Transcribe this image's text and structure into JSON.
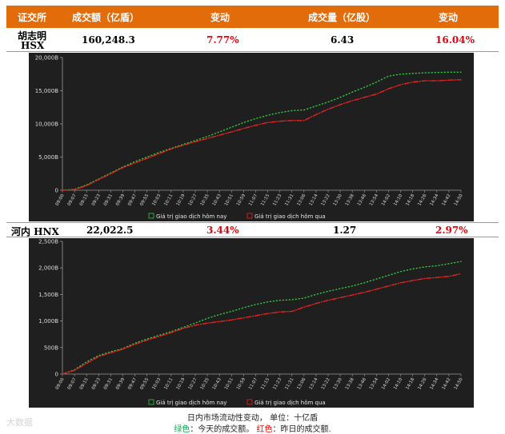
{
  "header": {
    "col1": "证交所",
    "col2": "成交额（亿盾）",
    "col3": "变动",
    "col4": "成交量（亿股）",
    "col5": "变动"
  },
  "hsx": {
    "name": "胡志明",
    "code": "HSX",
    "turnover": "160,248.3",
    "turnover_change": "7.77%",
    "volume": "6.43",
    "volume_change": "16.04%"
  },
  "hnx": {
    "name": "河内 HNX",
    "turnover": "22,022.5",
    "turnover_change": "3.44%",
    "volume": "1.27",
    "volume_change": "2.97%"
  },
  "footer": {
    "line1": "日内市场流动性变动，  单位：十亿盾",
    "green_label": "绿色",
    "green_text": "：今天的成交额。  ",
    "red_label": "红色",
    "red_text": "：昨日的成交额."
  },
  "watermark": "大数据",
  "colors": {
    "today": "#2ecc40",
    "yesterday": "#e8231f",
    "header_bg": "#e36c0a",
    "chart_bg": "#1f1f1f"
  },
  "chart_data": [
    {
      "type": "line",
      "yticks": [
        "0",
        "5,000B",
        "10,000B",
        "15,000B",
        "20,000B"
      ],
      "ylim": [
        0,
        20000
      ],
      "x": [
        "09:00",
        "09:07",
        "09:15",
        "09:23",
        "09:31",
        "09:39",
        "09:47",
        "09:55",
        "10:03",
        "10:11",
        "10:19",
        "10:27",
        "10:35",
        "10:43",
        "10:51",
        "10:59",
        "11:07",
        "11:15",
        "11:23",
        "11:31",
        "13:06",
        "13:14",
        "13:22",
        "13:30",
        "13:38",
        "13:46",
        "13:54",
        "14:02",
        "14:10",
        "14:18",
        "14:26",
        "14:34",
        "14:42",
        "14:50"
      ],
      "series": [
        {
          "name": "Giá trị giao dịch hôm nay",
          "style": "dotted",
          "values": [
            0,
            150,
            800,
            1700,
            2600,
            3500,
            4300,
            5000,
            5700,
            6300,
            6900,
            7500,
            8100,
            8800,
            9500,
            10200,
            10800,
            11300,
            11700,
            12000,
            12100,
            12700,
            13300,
            14000,
            14800,
            15500,
            16300,
            17200,
            17500,
            17600,
            17700,
            17750,
            17800,
            17800
          ]
        },
        {
          "name": "Giá trị giao dịch hôm qua",
          "style": "dashdot",
          "values": [
            0,
            100,
            700,
            1600,
            2500,
            3400,
            4100,
            4800,
            5500,
            6200,
            6800,
            7300,
            7800,
            8300,
            8800,
            9300,
            9800,
            10200,
            10400,
            10500,
            10500,
            11400,
            12200,
            12900,
            13500,
            14000,
            14500,
            15300,
            15900,
            16300,
            16500,
            16500,
            16600,
            16650
          ]
        }
      ]
    },
    {
      "type": "line",
      "yticks": [
        "0",
        "500B",
        "1,000B",
        "1,500B",
        "2,000B",
        "2,500B"
      ],
      "ylim": [
        0,
        2500
      ],
      "x": [
        "09:00",
        "09:07",
        "09:15",
        "09:23",
        "09:31",
        "09:39",
        "09:47",
        "09:55",
        "10:03",
        "10:11",
        "10:19",
        "10:27",
        "10:35",
        "10:43",
        "10:51",
        "10:59",
        "11:07",
        "11:15",
        "11:23",
        "11:31",
        "13:06",
        "13:14",
        "13:22",
        "13:30",
        "13:38",
        "13:46",
        "13:54",
        "14:02",
        "14:10",
        "14:18",
        "14:26",
        "14:34",
        "14:42",
        "14:50"
      ],
      "series": [
        {
          "name": "Giá trị giao dịch hôm nay",
          "style": "dotted",
          "values": [
            0,
            80,
            230,
            350,
            420,
            480,
            580,
            660,
            730,
            800,
            880,
            960,
            1050,
            1120,
            1180,
            1250,
            1310,
            1360,
            1390,
            1400,
            1430,
            1500,
            1560,
            1610,
            1660,
            1720,
            1790,
            1860,
            1930,
            1980,
            2020,
            2040,
            2080,
            2120
          ]
        },
        {
          "name": "Giá trị giao dịch hôm qua",
          "style": "dashdot",
          "values": [
            0,
            70,
            200,
            330,
            400,
            470,
            560,
            640,
            710,
            780,
            860,
            920,
            960,
            990,
            1020,
            1060,
            1100,
            1140,
            1170,
            1180,
            1260,
            1330,
            1390,
            1440,
            1490,
            1540,
            1600,
            1660,
            1720,
            1760,
            1800,
            1820,
            1840,
            1890
          ]
        }
      ]
    }
  ]
}
